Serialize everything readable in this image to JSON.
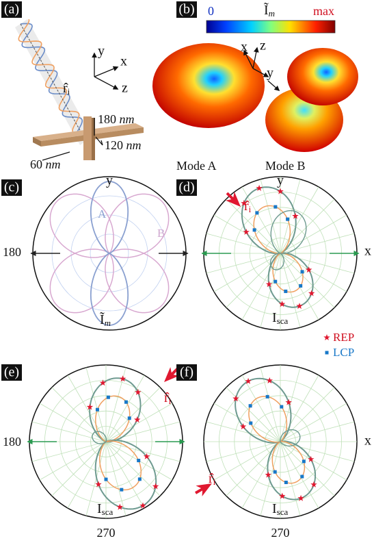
{
  "panel_labels": [
    "(a)",
    "(b)",
    "(c)",
    "(d)",
    "(e)",
    "(f)"
  ],
  "a": {
    "axes": [
      "y",
      "x",
      "z"
    ],
    "r_hat": {
      "main": "r̂",
      "sub": "i"
    },
    "dims": [
      "180",
      "120",
      "60"
    ],
    "unit": "nm"
  },
  "b": {
    "colorbar": {
      "min": "0",
      "label": {
        "main": "Ĩ",
        "sub": "m"
      },
      "max": "max"
    },
    "axes": [
      "x",
      "z",
      "y"
    ],
    "modes": [
      "Mode A",
      "Mode B"
    ]
  },
  "c": {
    "axis_top": "y",
    "axis_left": "180",
    "curves": [
      "A",
      "B"
    ],
    "label": {
      "main": "Ĩ",
      "sub": "m"
    }
  },
  "d": {
    "axis_top": "y",
    "axis_right": "x",
    "r_hat": {
      "main": "r̂",
      "sub": "i"
    },
    "label": {
      "main": "I",
      "sub": "sca"
    },
    "legend": [
      "REP",
      "LCP"
    ]
  },
  "e": {
    "axis_left": "180",
    "axis_bottom": "270",
    "r_hat": {
      "main": "r̂",
      "sub": "i"
    },
    "label": {
      "main": "I",
      "sub": "sca"
    }
  },
  "f": {
    "axis_right": "x",
    "axis_bottom": "270",
    "r_hat": {
      "main": "r̂",
      "sub": "i"
    },
    "label": {
      "main": "I",
      "sub": "sca"
    }
  }
}
